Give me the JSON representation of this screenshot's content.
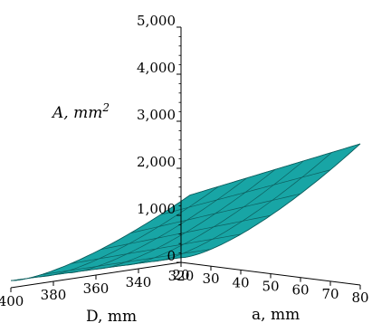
{
  "chart_data": {
    "type": "surface-3d",
    "title": "",
    "zaxis": {
      "label_main": "A, mm",
      "label_sup": "2",
      "ticks": [
        "0",
        "1,000",
        "2,000",
        "3,000",
        "4,000",
        "5,000"
      ],
      "range": [
        0,
        5000
      ]
    },
    "xaxis_a": {
      "label": "a, mm",
      "ticks": [
        "20",
        "30",
        "40",
        "50",
        "60",
        "70",
        "80"
      ],
      "range": [
        20,
        80
      ]
    },
    "xaxis_D": {
      "label": "D, mm",
      "ticks": [
        "400",
        "380",
        "360",
        "340",
        "320"
      ],
      "range": [
        320,
        400
      ]
    },
    "surface": {
      "corner_values": {
        "a20_D320": 100,
        "a80_D320": 3000,
        "a20_D400": 150,
        "a80_D400": 2450
      },
      "grid_divisions": 6,
      "color": "#18a5a5",
      "edge_color": "#0d5f5f"
    }
  }
}
